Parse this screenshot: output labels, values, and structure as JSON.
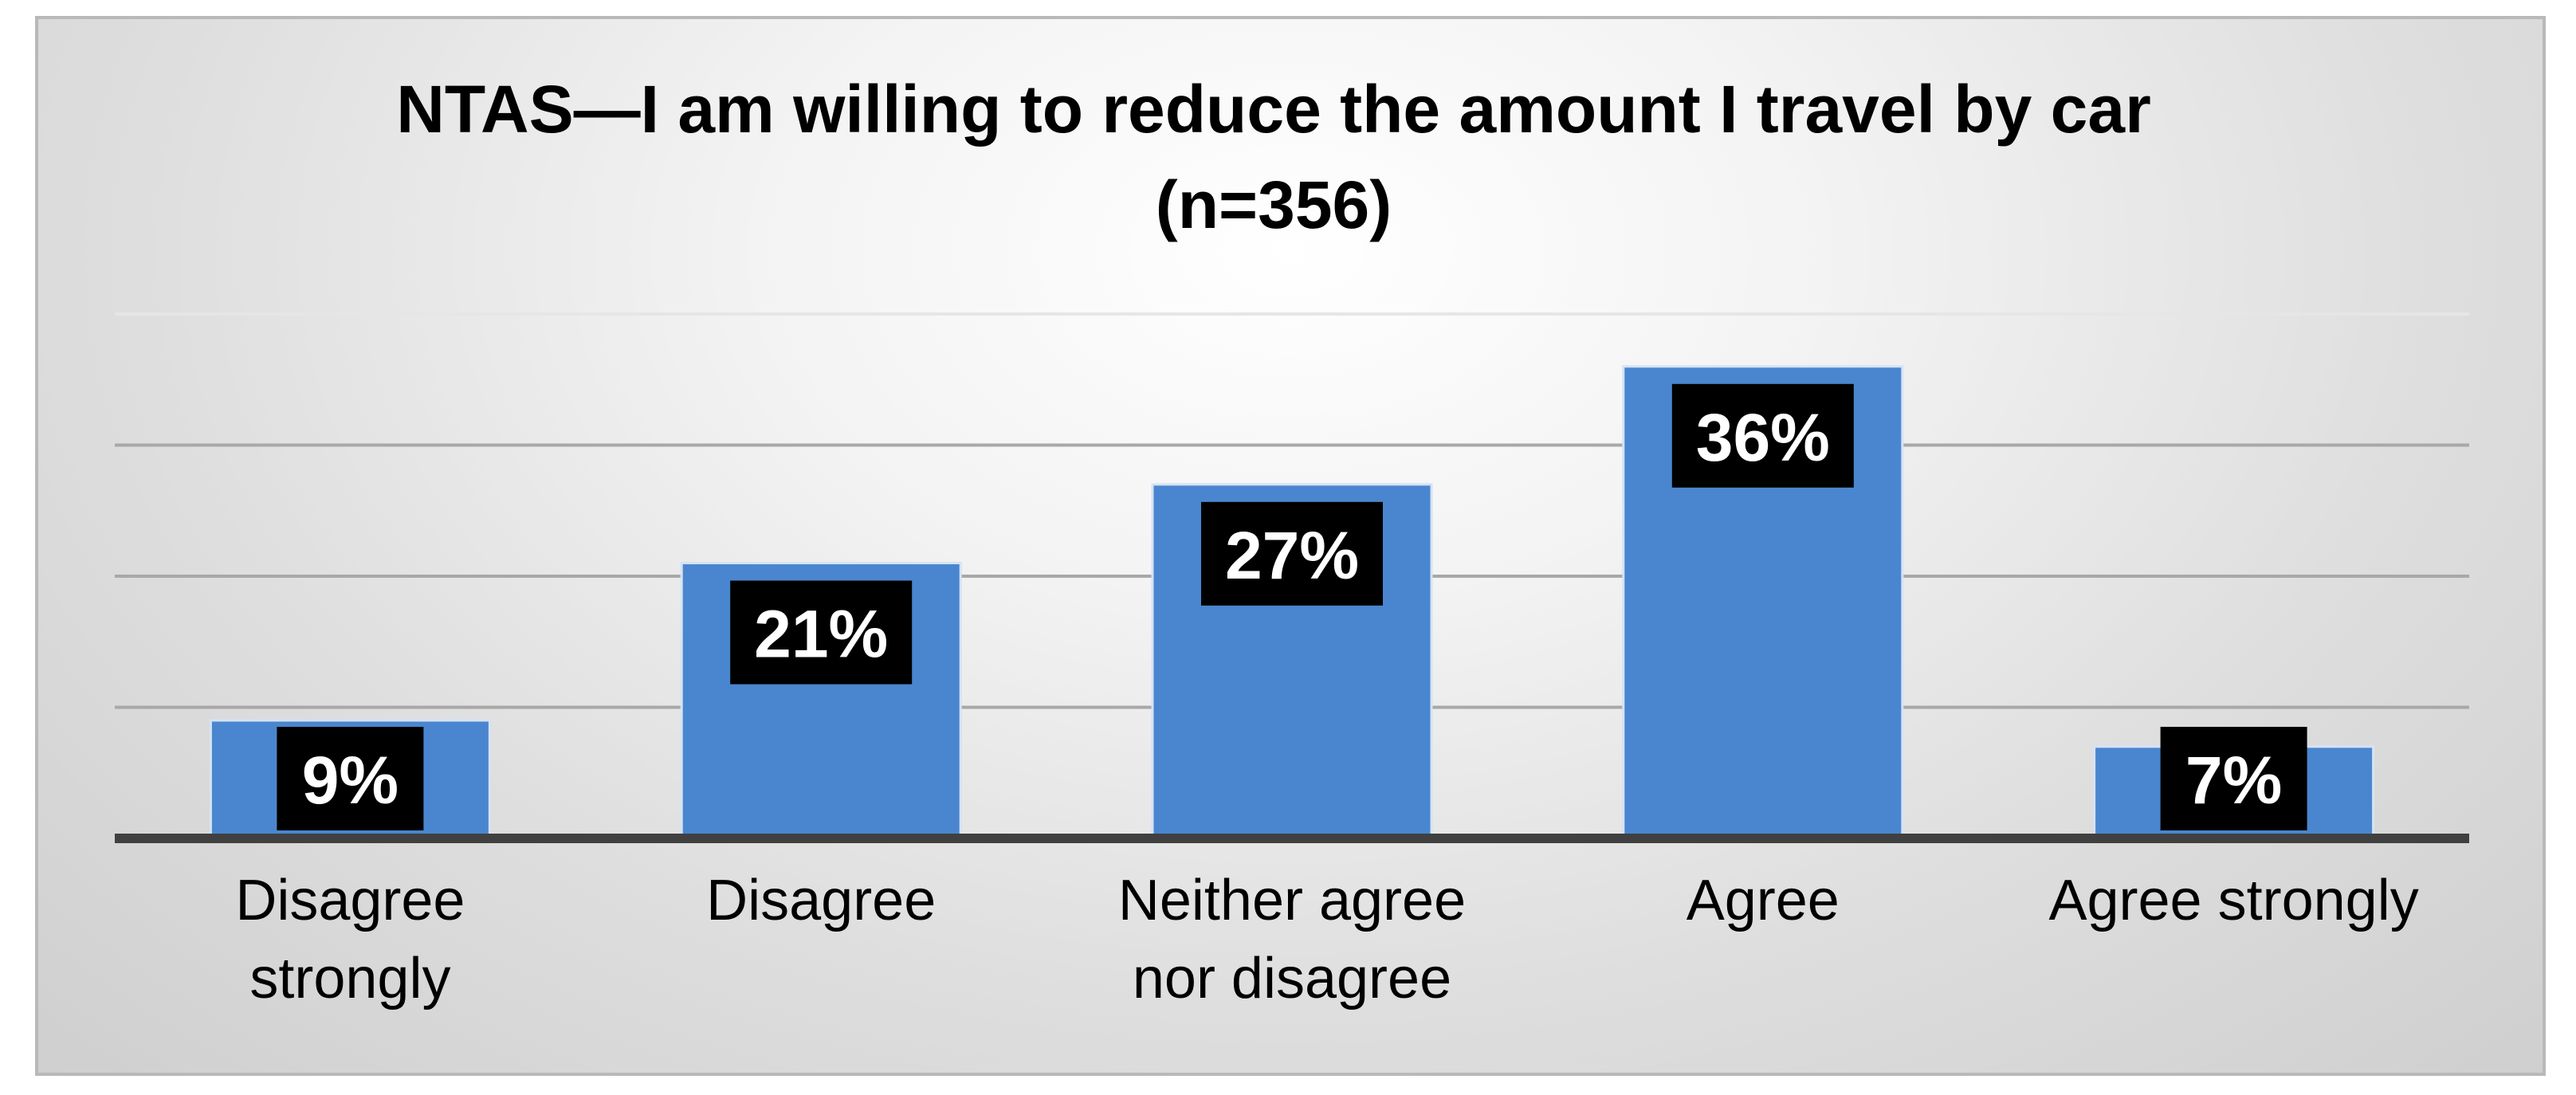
{
  "chart_data": {
    "type": "bar",
    "title": "NTAS—I am willing to reduce the amount I travel by car",
    "subtitle": "(n=356)",
    "categories": [
      [
        "Disagree",
        "strongly"
      ],
      [
        "Disagree"
      ],
      [
        "Neither agree",
        "nor disagree"
      ],
      [
        "Agree"
      ],
      [
        "Agree strongly"
      ]
    ],
    "values": [
      9,
      21,
      27,
      36,
      7
    ],
    "data_labels": [
      "9%",
      "21%",
      "27%",
      "36%",
      "7%"
    ],
    "unit": "%",
    "ylim": [
      0,
      40
    ],
    "gridlines": [
      10,
      20,
      30,
      40
    ],
    "grid": true,
    "legend": "none",
    "bar_color": "#4a86cf",
    "label_box_color": "#000000",
    "label_text_color": "#ffffff"
  }
}
